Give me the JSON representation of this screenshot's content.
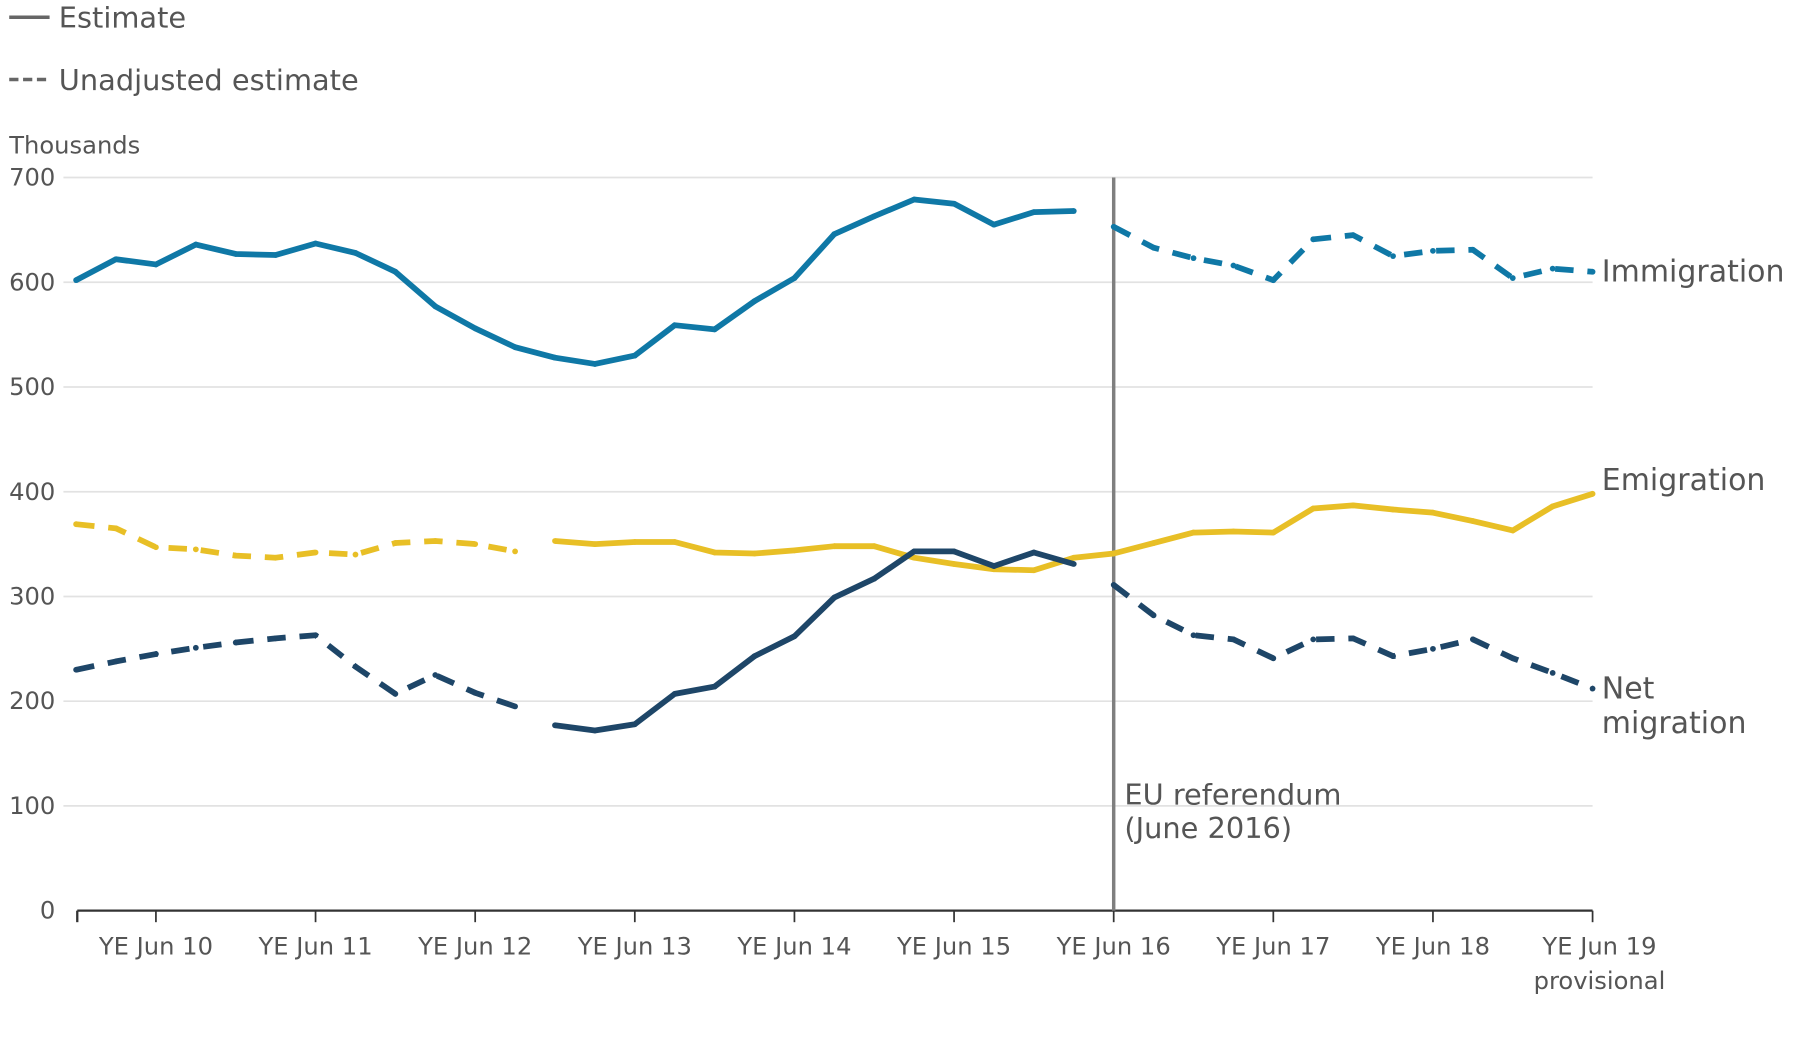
{
  "chart_data": {
    "type": "line",
    "ylabel": "Thousands",
    "ylim": [
      0,
      700
    ],
    "yticks": [
      0,
      100,
      200,
      300,
      400,
      500,
      600,
      700
    ],
    "grid": true,
    "legend": {
      "placement": "top-left",
      "items": [
        {
          "label": "Estimate",
          "style": "solid"
        },
        {
          "label": "Unadjusted estimate",
          "style": "dashed"
        }
      ]
    },
    "x": [
      "YE Dec 09",
      "YE Mar 10",
      "YE Jun 10",
      "YE Sep 10",
      "YE Dec 10",
      "YE Mar 11",
      "YE Jun 11",
      "YE Sep 11",
      "YE Dec 11",
      "YE Mar 12",
      "YE Jun 12",
      "YE Sep 12",
      "YE Dec 12",
      "YE Mar 13",
      "YE Jun 13",
      "YE Sep 13",
      "YE Dec 13",
      "YE Mar 14",
      "YE Jun 14",
      "YE Sep 14",
      "YE Dec 14",
      "YE Mar 15",
      "YE Jun 15",
      "YE Sep 15",
      "YE Dec 15",
      "YE Mar 16",
      "YE Jun 16",
      "YE Sep 16",
      "YE Dec 16",
      "YE Mar 17",
      "YE Jun 17",
      "YE Sep 17",
      "YE Dec 17",
      "YE Mar 18",
      "YE Jun 18",
      "YE Sep 18",
      "YE Dec 18",
      "YE Mar 19",
      "YE Jun 19"
    ],
    "xtick_labels": [
      "YE Jun 10",
      "YE Jun 11",
      "YE Jun 12",
      "YE Jun 13",
      "YE Jun 14",
      "YE Jun 15",
      "YE Jun 16",
      "YE Jun 17",
      "YE Jun 18",
      "YE Jun 19"
    ],
    "xtick_sublabel": "provisional",
    "series": [
      {
        "name": "Immigration",
        "color": "#0f78a6",
        "values": [
          602,
          622,
          617,
          636,
          627,
          626,
          637,
          628,
          610,
          577,
          556,
          538,
          528,
          522,
          530,
          559,
          555,
          582,
          604,
          646,
          663,
          679,
          675,
          655,
          667,
          668,
          653,
          633,
          623,
          616,
          602,
          641,
          645,
          625,
          630,
          631,
          604,
          613,
          610
        ],
        "unadjusted_from": 26
      },
      {
        "name": "Emigration",
        "color": "#e8bf26",
        "values": [
          369,
          365,
          347,
          345,
          339,
          337,
          342,
          340,
          351,
          353,
          350,
          343,
          353,
          350,
          352,
          352,
          342,
          341,
          344,
          348,
          348,
          337,
          331,
          326,
          325,
          337,
          341,
          351,
          361,
          362,
          361,
          384,
          387,
          383,
          380,
          372,
          363,
          386,
          398
        ],
        "unadjusted_upto": 11
      },
      {
        "name": "Net migration",
        "color": "#1e4668",
        "values": [
          230,
          238,
          245,
          251,
          256,
          260,
          263,
          233,
          207,
          225,
          208,
          195,
          177,
          172,
          178,
          207,
          214,
          243,
          262,
          299,
          317,
          343,
          343,
          329,
          342,
          331,
          311,
          282,
          263,
          259,
          241,
          259,
          260,
          243,
          250,
          259,
          241,
          227,
          212
        ],
        "unadjusted_upto": 11,
        "unadjusted_from": 26
      }
    ],
    "series_labels": {
      "immigration": "Immigration",
      "emigration": "Emigration",
      "net_line1": "Net",
      "net_line2": "migration"
    },
    "annotation": {
      "line1": "EU referendum",
      "line2": "(June 2016)",
      "at": "YE Jun 16",
      "line_color": "#7f7f7f"
    }
  }
}
